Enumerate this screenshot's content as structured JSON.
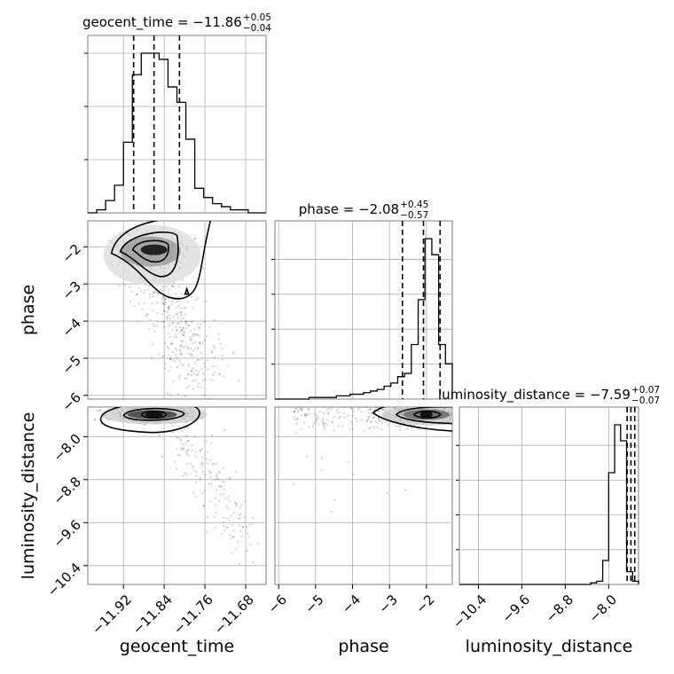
{
  "chart_data": {
    "type": "corner",
    "parameters": [
      "geocent_time",
      "phase",
      "luminosity_distance"
    ],
    "titles": [
      {
        "param": "geocent_time",
        "prefix": "geocent_time = −11.86",
        "plus": "+0.05",
        "minus": "−0.04"
      },
      {
        "param": "phase",
        "prefix": "phase = −2.08",
        "plus": "+0.45",
        "minus": "−0.57"
      },
      {
        "param": "luminosity_distance",
        "prefix": "luminosity_distance = −7.59",
        "plus": "+0.07",
        "minus": "−0.07"
      }
    ],
    "axis_labels": {
      "geocent_time": "geocent_time",
      "phase": "phase",
      "luminosity_distance": "luminosity_distance"
    },
    "ranges": {
      "geocent_time": [
        -11.99,
        -11.64
      ],
      "phase": [
        -6.1,
        -1.3
      ],
      "luminosity_distance": [
        -10.75,
        -7.45
      ]
    },
    "ticks": {
      "geocent_time": [
        -11.92,
        -11.84,
        -11.76,
        -11.68
      ],
      "phase_x": [
        -6,
        -5,
        -4,
        -3,
        -2
      ],
      "phase_y": [
        -2,
        -3,
        -4,
        -5,
        -6
      ],
      "luminosity_distance": [
        -8.0,
        -8.8,
        -9.6,
        -10.4
      ]
    },
    "tick_labels": {
      "geocent_time": [
        "−11.92",
        "−11.84",
        "−11.76",
        "−11.68"
      ],
      "phase_x": [
        "−6",
        "−5",
        "−4",
        "−3",
        "−2"
      ],
      "phase_y": [
        "−2",
        "−3",
        "−4",
        "−5",
        "−6"
      ],
      "luminosity_distance": [
        "−10.4",
        "−9.6",
        "−8.8",
        "−8.0"
      ],
      "luminosity_distance_y": [
        "−8.0",
        "−8.8",
        "−9.6",
        "−10.4"
      ]
    },
    "histograms": {
      "geocent_time": {
        "edges_range": [
          -11.99,
          -11.64
        ],
        "counts": [
          0,
          1,
          4,
          9,
          23,
          45,
          52,
          52,
          50,
          41,
          36,
          24,
          8,
          5,
          3,
          2,
          1,
          1,
          0,
          0
        ]
      },
      "phase": {
        "edges_range": [
          -6.1,
          -1.3
        ],
        "counts": [
          0,
          0,
          0,
          0,
          0,
          1,
          1,
          1,
          1,
          2,
          2,
          3,
          3,
          4,
          5,
          6,
          8,
          10,
          14,
          16,
          34,
          62,
          100,
          90,
          34,
          22
        ]
      },
      "luminosity_distance": {
        "edges_range": [
          -10.75,
          -7.45
        ],
        "counts": [
          0,
          0,
          0,
          0,
          0,
          0,
          0,
          0,
          0,
          0,
          0,
          0,
          0,
          0,
          0,
          0,
          0,
          0,
          0,
          0,
          0,
          0,
          1,
          2,
          15,
          70,
          100,
          90,
          8,
          2
        ]
      }
    },
    "quantiles": {
      "geocent_time": [
        -11.9,
        -11.86,
        -11.81
      ],
      "phase": [
        -2.65,
        -2.08,
        -1.63
      ],
      "luminosity_distance": [
        -7.66,
        -7.59,
        -7.52
      ]
    },
    "peaks": {
      "geocent_time_vs_phase": [
        -11.86,
        -2.08
      ],
      "geocent_time_vs_luminosity_distance": [
        -11.86,
        -7.59
      ],
      "phase_vs_luminosity_distance": [
        -2.0,
        -7.59
      ]
    },
    "grid": true
  }
}
